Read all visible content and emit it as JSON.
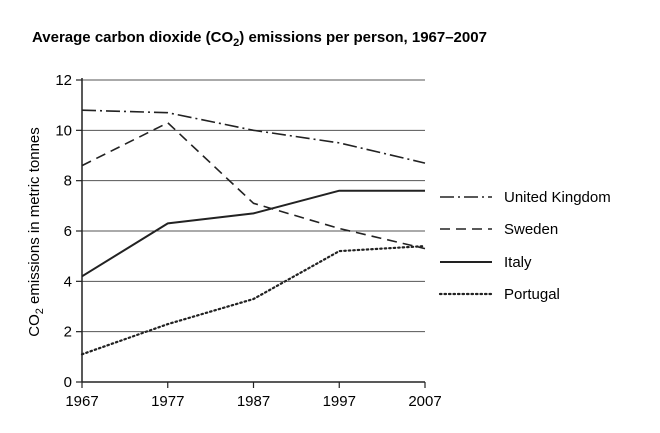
{
  "chart_data": {
    "type": "line",
    "title": "Average carbon dioxide (CO",
    "title_sub": "2",
    "title_rest": ") emissions per person, 1967–2007",
    "ylabel": "CO",
    "ylabel_sub": "2",
    "ylabel_rest": " emissions in metric tonnes",
    "xlabel": "",
    "x": [
      1967,
      1977,
      1987,
      1997,
      2007
    ],
    "x_tick_labels": [
      "1967",
      "1977",
      "1987",
      "1997",
      "2007"
    ],
    "ylim": [
      0,
      12
    ],
    "y_ticks": [
      0,
      2,
      4,
      6,
      8,
      10,
      12
    ],
    "y_tick_labels": [
      "0",
      "2",
      "4",
      "6",
      "8",
      "10",
      "12"
    ],
    "grid": "horizontal",
    "legend_position": "right",
    "series": [
      {
        "name": "United Kingdom",
        "style": "dashdot",
        "color": "#222222",
        "values": [
          10.8,
          10.7,
          10.0,
          9.5,
          8.7
        ]
      },
      {
        "name": "Sweden",
        "style": "dashed",
        "color": "#222222",
        "values": [
          8.6,
          10.3,
          7.1,
          6.1,
          5.3
        ]
      },
      {
        "name": "Italy",
        "style": "solid",
        "color": "#222222",
        "values": [
          4.2,
          6.3,
          6.7,
          7.6,
          7.6
        ]
      },
      {
        "name": "Portugal",
        "style": "dotted",
        "color": "#222222",
        "values": [
          1.1,
          2.3,
          3.3,
          5.2,
          5.4
        ]
      }
    ]
  }
}
